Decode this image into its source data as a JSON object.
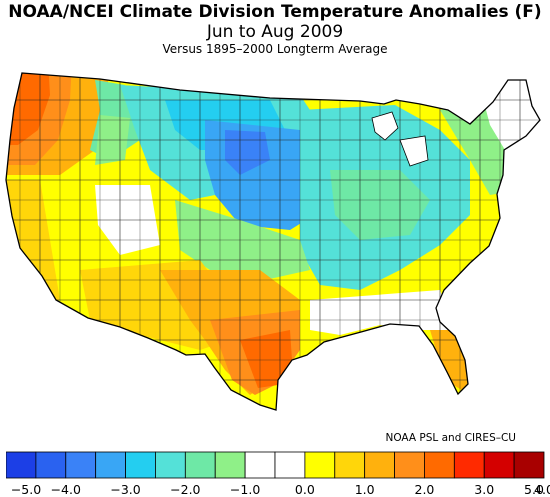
{
  "title": {
    "line1": "NOAA/NCEI Climate Division Temperature Anomalies (F)",
    "line2": "Jun to Aug 2009",
    "line3": "Versus 1895–2000 Longterm Average"
  },
  "credit": "NOAA PSL and CIRES–CU",
  "legend": {
    "colors": [
      "#1c3fe6",
      "#2a62f0",
      "#3a82f7",
      "#39a6f5",
      "#24cef0",
      "#54e1d8",
      "#6ee8a6",
      "#8ff088",
      "#ffffff",
      "#ffffff",
      "#ffff00",
      "#ffd60a",
      "#ffb10d",
      "#ff8f1a",
      "#ff6a00",
      "#ff2a00",
      "#d40000",
      "#a80000"
    ],
    "labels": [
      "−5.0",
      "−4.0",
      "−3.0",
      "−2.0",
      "−1.0",
      "0.0",
      "1.0",
      "2.0",
      "3.0",
      "4.0",
      "5.0"
    ]
  },
  "colors": {
    "map_outline": "#000000",
    "division_lines": "#222222"
  }
}
